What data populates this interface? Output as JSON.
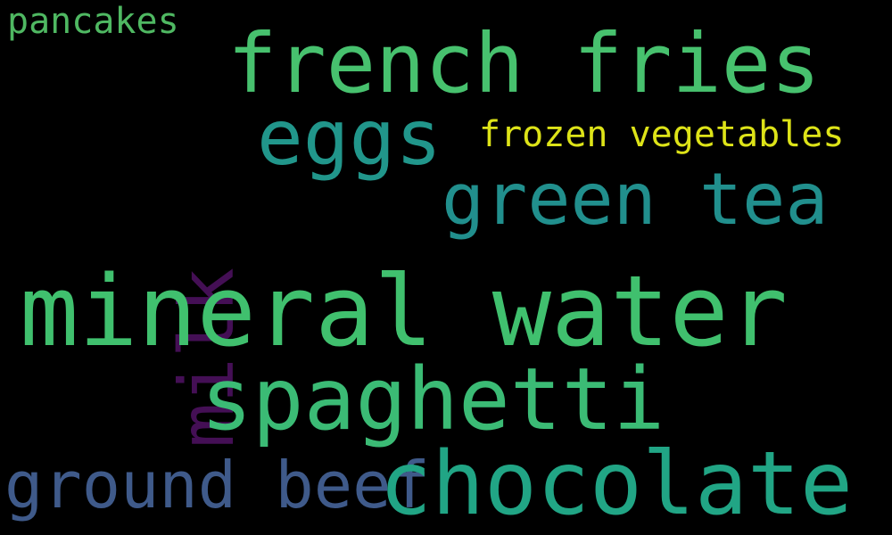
{
  "words": [
    {
      "id": "pancakes",
      "text": "pancakes",
      "color": "#4fb862"
    },
    {
      "id": "fries",
      "text": "french fries",
      "color": "#47c16e"
    },
    {
      "id": "eggs",
      "text": "eggs",
      "color": "#21968b"
    },
    {
      "id": "frozen",
      "text": "frozen vegetables",
      "color": "#dde318"
    },
    {
      "id": "tea",
      "text": "green tea",
      "color": "#218f8d"
    },
    {
      "id": "milk",
      "text": "milk",
      "color": "#440f55"
    },
    {
      "id": "water",
      "text": "mineral water",
      "color": "#40c06e"
    },
    {
      "id": "spaghetti",
      "text": "spaghetti",
      "color": "#3bbb75"
    },
    {
      "id": "beef",
      "text": "ground beef",
      "color": "#3f5a8a"
    },
    {
      "id": "chocolate",
      "text": "chocolate",
      "color": "#21a585"
    }
  ]
}
